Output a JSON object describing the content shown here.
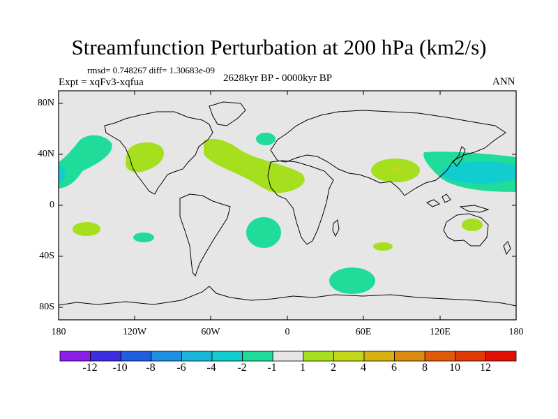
{
  "title": "Streamfunction Perturbation at 200 hPa (km2/s)",
  "stats": "rmsd= 0.748267 diff= 1.30683e-09",
  "experiment": "Expt = xqFv3-xqfua",
  "period": "2628kyr BP - 0000kyr BP",
  "season": "ANN",
  "lon_labels": [
    "180",
    "120W",
    "60W",
    "0",
    "60E",
    "120E",
    "180"
  ],
  "lat_labels": [
    "80N",
    "40N",
    "0",
    "40S",
    "80S"
  ],
  "colorbar": {
    "labels": [
      "-12",
      "-10",
      "-8",
      "-6",
      "-4",
      "-2",
      "-1",
      "1",
      "2",
      "4",
      "6",
      "8",
      "10",
      "12"
    ],
    "colors": [
      "#8c1ee8",
      "#3c2ee0",
      "#1f5ee0",
      "#1f8fe0",
      "#17b6d8",
      "#12cdd0",
      "#20dc9a",
      "#e6e6e6",
      "#a6df1e",
      "#c2d61a",
      "#d8b010",
      "#de8a0c",
      "#e05a0a",
      "#e03a06",
      "#e01004"
    ]
  },
  "colors": {
    "background": "#e6e6e6",
    "coast": "#000000"
  }
}
